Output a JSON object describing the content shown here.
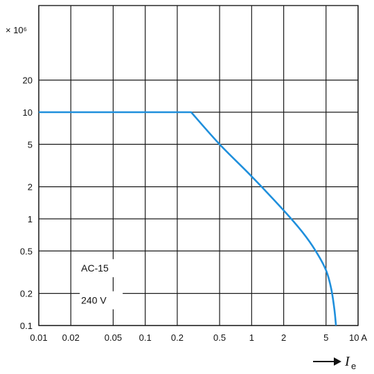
{
  "chart_data": {
    "type": "line",
    "title": "",
    "xlabel": "I",
    "xlabel_subscript": "e",
    "xlabel_arrow": "→",
    "ylabel": "× 10⁶",
    "x_scale": "log",
    "y_scale": "log",
    "xlim": [
      0.01,
      10
    ],
    "ylim": [
      0.1,
      100
    ],
    "grid": true,
    "x_ticks": [
      {
        "value": 0.01,
        "label": "0.01"
      },
      {
        "value": 0.02,
        "label": "0.02"
      },
      {
        "value": 0.05,
        "label": "0.05"
      },
      {
        "value": 0.1,
        "label": "0.1"
      },
      {
        "value": 0.2,
        "label": "0.2"
      },
      {
        "value": 0.5,
        "label": "0.5"
      },
      {
        "value": 1,
        "label": "1"
      },
      {
        "value": 2,
        "label": "2"
      },
      {
        "value": 5,
        "label": "5"
      },
      {
        "value": 10,
        "label": "10 A"
      }
    ],
    "y_ticks": [
      {
        "value": 0.1,
        "label": "0.1"
      },
      {
        "value": 0.2,
        "label": "0.2"
      },
      {
        "value": 0.5,
        "label": "0.5"
      },
      {
        "value": 1,
        "label": "1"
      },
      {
        "value": 2,
        "label": "2"
      },
      {
        "value": 5,
        "label": "5"
      },
      {
        "value": 10,
        "label": "10"
      },
      {
        "value": 20,
        "label": "20"
      }
    ],
    "series": [
      {
        "color": "#1f8fdc",
        "points": [
          [
            0.01,
            10
          ],
          [
            0.27,
            10
          ],
          [
            0.5,
            5
          ],
          [
            1,
            2.5
          ],
          [
            2,
            1.2
          ],
          [
            3,
            0.75
          ],
          [
            4,
            0.5
          ],
          [
            5,
            0.33
          ],
          [
            5.6,
            0.22
          ],
          [
            6,
            0.14
          ],
          [
            6.2,
            0.1
          ]
        ]
      }
    ],
    "annotations": [
      {
        "text": "AC-15",
        "x": 0.025,
        "y": 0.32
      },
      {
        "text": "240 V",
        "x": 0.025,
        "y": 0.16
      }
    ]
  }
}
